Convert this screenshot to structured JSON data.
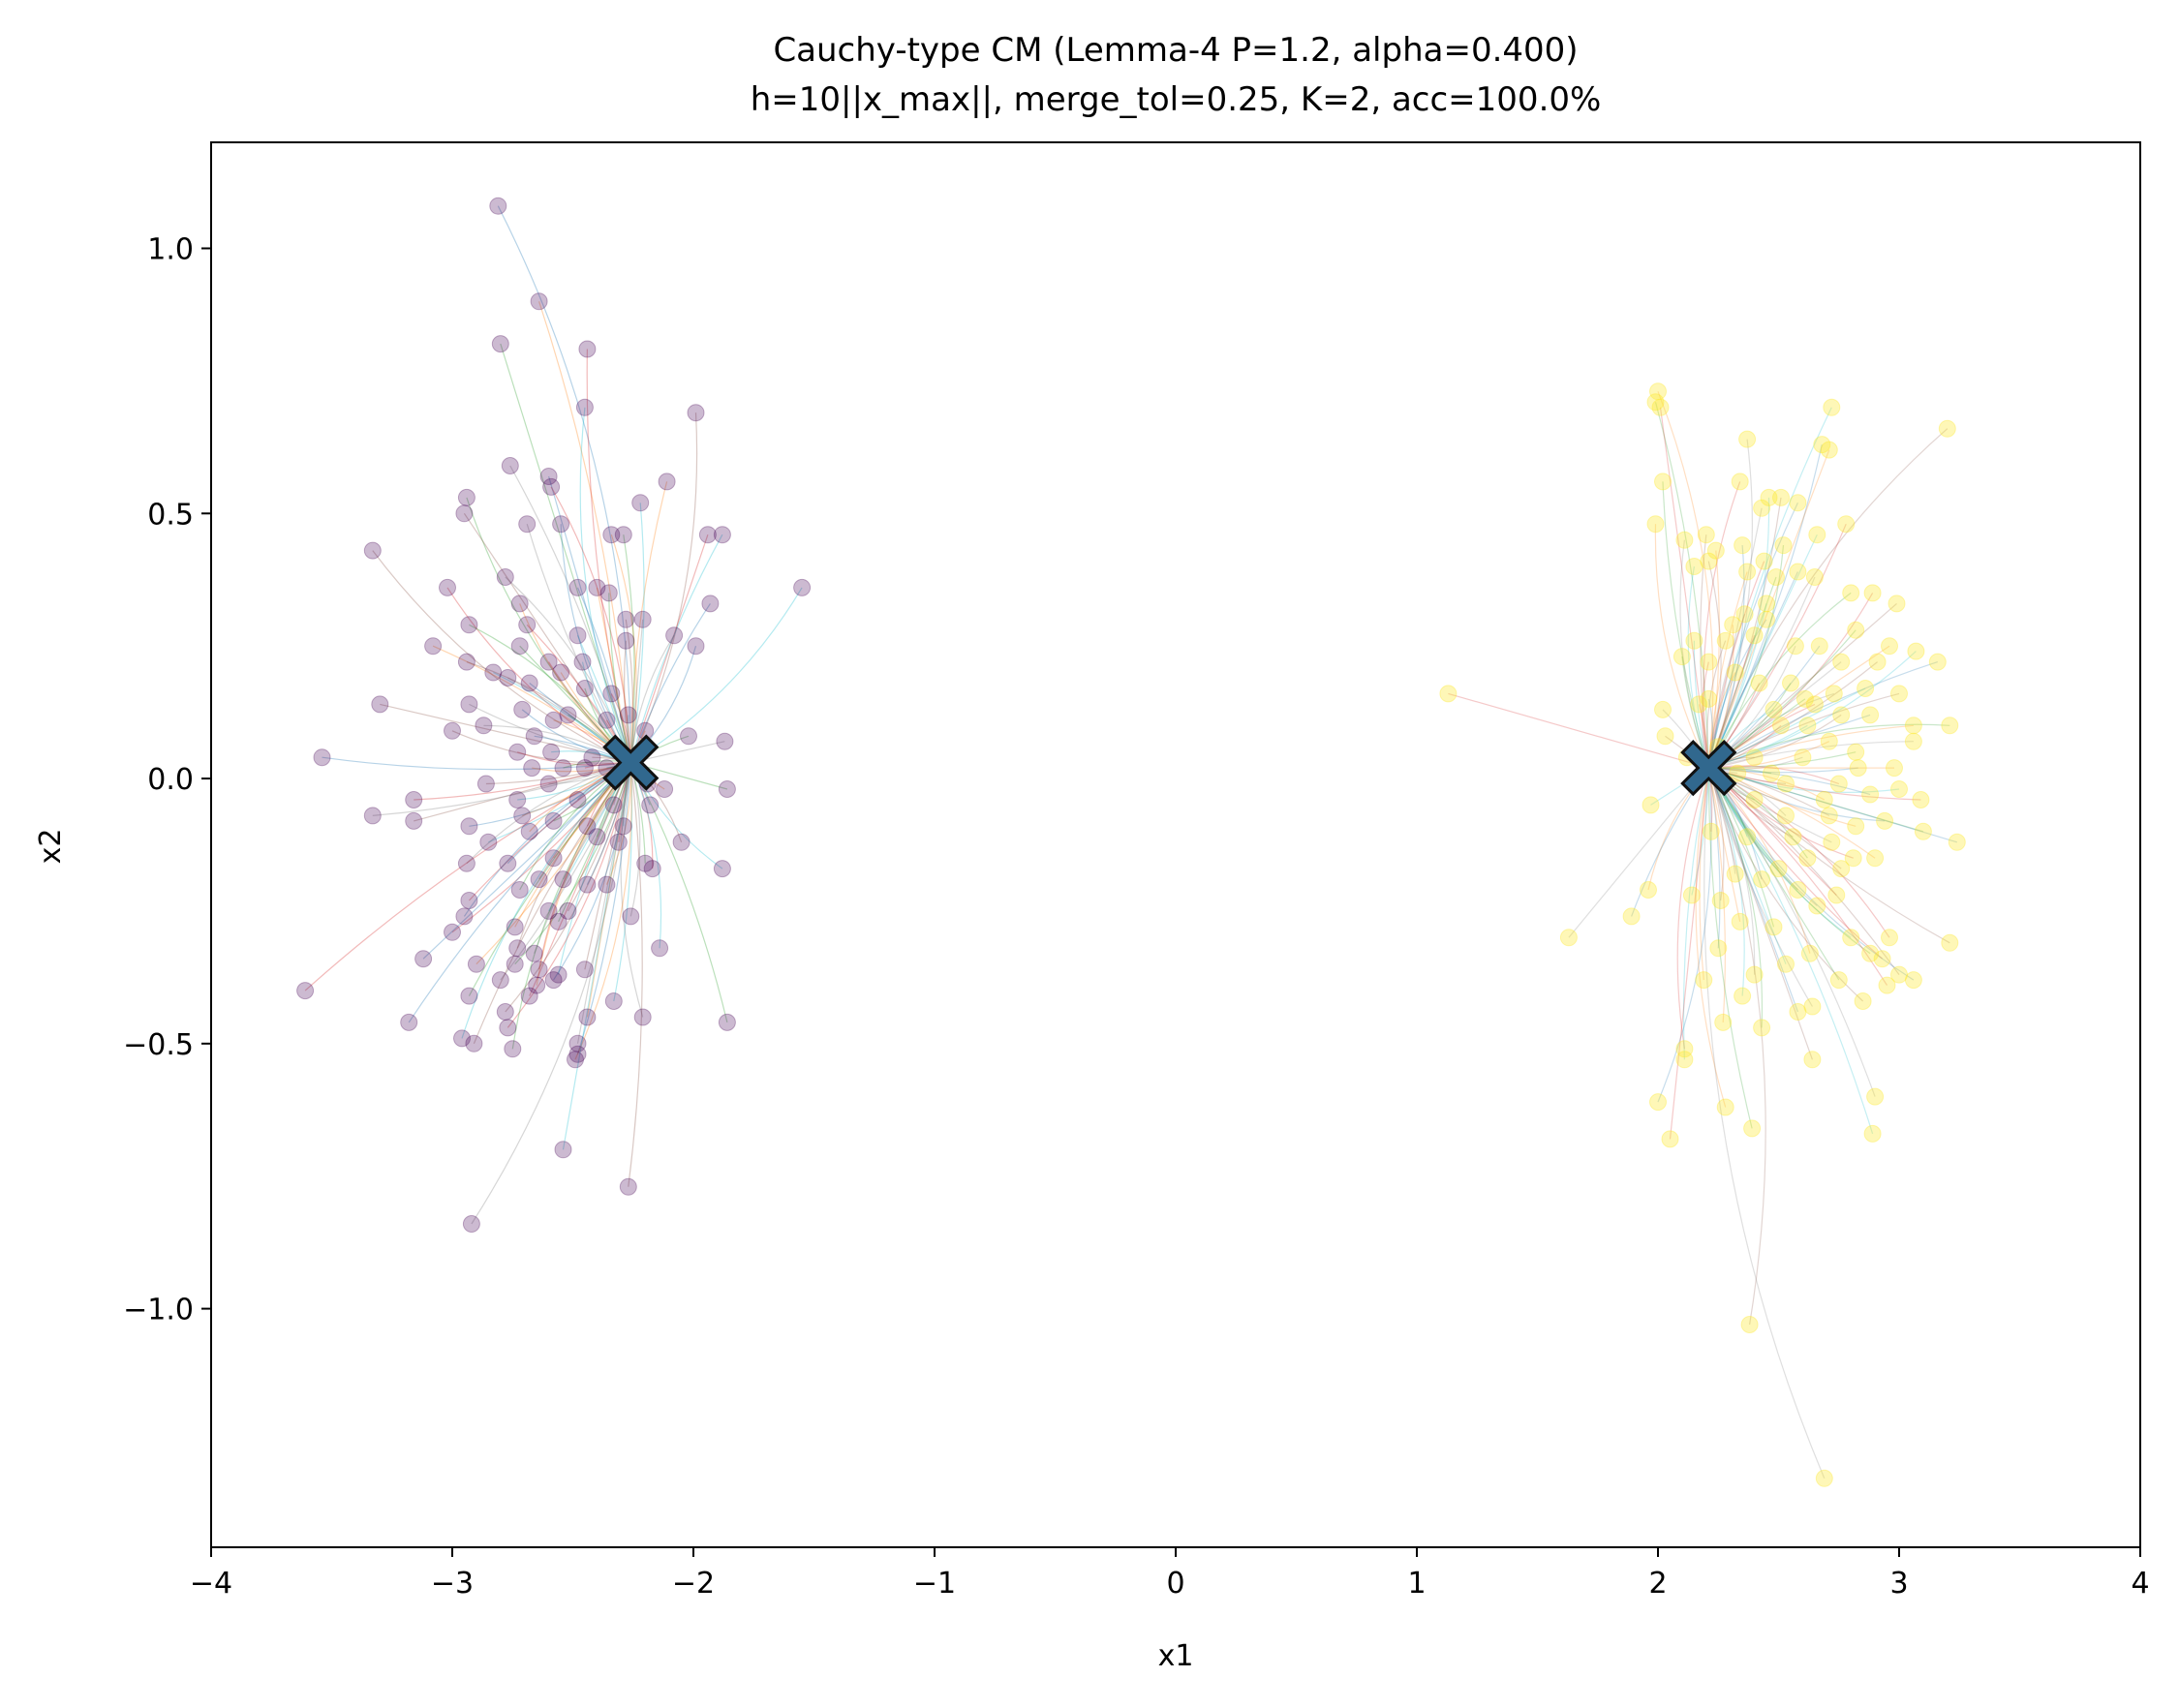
{
  "chart_data": {
    "type": "scatter",
    "title": "Cauchy-type CM (Lemma-4 P=1.2, alpha=0.400)",
    "subtitle": "h=10||x_max||, merge_tol=0.25, K=2, acc=100.0%",
    "xlabel": "x1",
    "ylabel": "x2",
    "xlim": [
      -4,
      4
    ],
    "ylim": [
      -1.45,
      1.2
    ],
    "xticks": [
      {
        "value": -4,
        "label": "−4"
      },
      {
        "value": -3,
        "label": "−3"
      },
      {
        "value": -2,
        "label": "−2"
      },
      {
        "value": -1,
        "label": "−1"
      },
      {
        "value": 0,
        "label": "0"
      },
      {
        "value": 1,
        "label": "1"
      },
      {
        "value": 2,
        "label": "2"
      },
      {
        "value": 3,
        "label": "3"
      },
      {
        "value": 4,
        "label": "4"
      }
    ],
    "yticks": [
      {
        "value": 1.0,
        "label": "1.0"
      },
      {
        "value": 0.5,
        "label": "0.5"
      },
      {
        "value": 0.0,
        "label": "0.0"
      },
      {
        "value": -0.5,
        "label": "−0.5"
      },
      {
        "value": -1.0,
        "label": "−1.0"
      }
    ],
    "grid": false,
    "legend": "none",
    "colors": {
      "cluster_left": "#440154",
      "cluster_right": "#fde725",
      "center_fill": "#31688e",
      "center_edge": "#111111",
      "trajectory_palette": [
        "#1f77b4",
        "#ff7f0e",
        "#2ca02c",
        "#d62728",
        "#17becf",
        "#8c564b",
        "#7f7f7f"
      ]
    },
    "series": [
      {
        "color": "#440154",
        "points": [
          [
            -2.81,
            1.08
          ],
          [
            -2.64,
            0.9
          ],
          [
            -2.8,
            0.82
          ],
          [
            -2.44,
            0.81
          ],
          [
            -2.45,
            0.7
          ],
          [
            -1.99,
            0.69
          ],
          [
            -2.76,
            0.59
          ],
          [
            -2.6,
            0.57
          ],
          [
            -2.11,
            0.56
          ],
          [
            -2.94,
            0.53
          ],
          [
            -2.59,
            0.55
          ],
          [
            -2.22,
            0.52
          ],
          [
            -2.95,
            0.5
          ],
          [
            -2.69,
            0.48
          ],
          [
            -2.55,
            0.48
          ],
          [
            -2.34,
            0.46
          ],
          [
            -2.29,
            0.46
          ],
          [
            -1.94,
            0.46
          ],
          [
            -1.88,
            0.46
          ],
          [
            -3.33,
            0.43
          ],
          [
            -2.78,
            0.38
          ],
          [
            -2.48,
            0.36
          ],
          [
            -2.4,
            0.36
          ],
          [
            -2.35,
            0.35
          ],
          [
            -3.02,
            0.36
          ],
          [
            -1.55,
            0.36
          ],
          [
            -2.28,
            0.3
          ],
          [
            -2.21,
            0.3
          ],
          [
            -1.93,
            0.33
          ],
          [
            -2.72,
            0.33
          ],
          [
            -2.93,
            0.29
          ],
          [
            -2.69,
            0.29
          ],
          [
            -2.48,
            0.27
          ],
          [
            -2.28,
            0.26
          ],
          [
            -2.08,
            0.27
          ],
          [
            -1.99,
            0.25
          ],
          [
            -3.08,
            0.25
          ],
          [
            -2.72,
            0.25
          ],
          [
            -2.6,
            0.22
          ],
          [
            -2.46,
            0.22
          ],
          [
            -2.94,
            0.22
          ],
          [
            -2.77,
            0.19
          ],
          [
            -2.68,
            0.18
          ],
          [
            -2.55,
            0.2
          ],
          [
            -2.45,
            0.17
          ],
          [
            -2.34,
            0.16
          ],
          [
            -2.83,
            0.2
          ],
          [
            -3.3,
            0.14
          ],
          [
            -2.93,
            0.14
          ],
          [
            -2.71,
            0.13
          ],
          [
            -2.58,
            0.11
          ],
          [
            -2.52,
            0.12
          ],
          [
            -2.36,
            0.11
          ],
          [
            -2.27,
            0.12
          ],
          [
            -3.0,
            0.09
          ],
          [
            -2.87,
            0.1
          ],
          [
            -2.66,
            0.08
          ],
          [
            -2.2,
            0.09
          ],
          [
            -2.02,
            0.08
          ],
          [
            -2.73,
            0.05
          ],
          [
            -2.59,
            0.05
          ],
          [
            -2.42,
            0.04
          ],
          [
            -1.87,
            0.07
          ],
          [
            -3.54,
            0.04
          ],
          [
            -2.67,
            0.02
          ],
          [
            -2.54,
            0.02
          ],
          [
            -2.45,
            0.02
          ],
          [
            -2.36,
            0.02
          ],
          [
            -2.86,
            -0.01
          ],
          [
            -2.6,
            -0.01
          ],
          [
            -2.19,
            -0.01
          ],
          [
            -2.12,
            -0.02
          ],
          [
            -1.86,
            -0.02
          ],
          [
            -3.16,
            -0.04
          ],
          [
            -2.73,
            -0.04
          ],
          [
            -2.48,
            -0.04
          ],
          [
            -2.33,
            -0.05
          ],
          [
            -2.18,
            -0.05
          ],
          [
            -2.71,
            -0.07
          ],
          [
            -2.58,
            -0.08
          ],
          [
            -2.44,
            -0.09
          ],
          [
            -2.29,
            -0.09
          ],
          [
            -3.16,
            -0.08
          ],
          [
            -3.33,
            -0.07
          ],
          [
            -2.93,
            -0.09
          ],
          [
            -2.68,
            -0.1
          ],
          [
            -2.4,
            -0.11
          ],
          [
            -2.31,
            -0.12
          ],
          [
            -2.85,
            -0.12
          ],
          [
            -2.05,
            -0.12
          ],
          [
            -2.94,
            -0.16
          ],
          [
            -2.77,
            -0.16
          ],
          [
            -2.58,
            -0.15
          ],
          [
            -2.2,
            -0.16
          ],
          [
            -2.17,
            -0.17
          ],
          [
            -1.88,
            -0.17
          ],
          [
            -2.64,
            -0.19
          ],
          [
            -2.54,
            -0.19
          ],
          [
            -2.44,
            -0.2
          ],
          [
            -2.36,
            -0.2
          ],
          [
            -2.72,
            -0.21
          ],
          [
            -2.93,
            -0.23
          ],
          [
            -2.6,
            -0.25
          ],
          [
            -2.52,
            -0.25
          ],
          [
            -2.26,
            -0.26
          ],
          [
            -2.95,
            -0.26
          ],
          [
            -2.74,
            -0.28
          ],
          [
            -2.56,
            -0.27
          ],
          [
            -3.0,
            -0.29
          ],
          [
            -2.14,
            -0.32
          ],
          [
            -2.73,
            -0.32
          ],
          [
            -2.66,
            -0.33
          ],
          [
            -3.12,
            -0.34
          ],
          [
            -2.9,
            -0.35
          ],
          [
            -2.74,
            -0.35
          ],
          [
            -2.64,
            -0.36
          ],
          [
            -2.56,
            -0.37
          ],
          [
            -2.45,
            -0.36
          ],
          [
            -2.8,
            -0.38
          ],
          [
            -2.58,
            -0.38
          ],
          [
            -2.65,
            -0.39
          ],
          [
            -2.93,
            -0.41
          ],
          [
            -2.68,
            -0.41
          ],
          [
            -2.33,
            -0.42
          ],
          [
            -2.78,
            -0.44
          ],
          [
            -2.21,
            -0.45
          ],
          [
            -3.18,
            -0.46
          ],
          [
            -2.44,
            -0.45
          ],
          [
            -1.86,
            -0.46
          ],
          [
            -2.77,
            -0.47
          ],
          [
            -2.96,
            -0.49
          ],
          [
            -2.91,
            -0.5
          ],
          [
            -2.48,
            -0.5
          ],
          [
            -2.48,
            -0.52
          ],
          [
            -2.49,
            -0.53
          ],
          [
            -2.75,
            -0.51
          ],
          [
            -3.61,
            -0.4
          ],
          [
            -2.54,
            -0.7
          ],
          [
            -2.27,
            -0.77
          ],
          [
            -2.92,
            -0.84
          ]
        ],
        "center": [
          -2.26,
          0.03
        ]
      },
      {
        "color": "#fde725",
        "points": [
          [
            2.0,
            0.73
          ],
          [
            1.99,
            0.71
          ],
          [
            2.01,
            0.7
          ],
          [
            2.72,
            0.7
          ],
          [
            3.2,
            0.66
          ],
          [
            2.37,
            0.64
          ],
          [
            2.68,
            0.63
          ],
          [
            2.71,
            0.62
          ],
          [
            2.02,
            0.56
          ],
          [
            2.34,
            0.56
          ],
          [
            2.46,
            0.53
          ],
          [
            2.51,
            0.53
          ],
          [
            2.43,
            0.51
          ],
          [
            2.58,
            0.52
          ],
          [
            1.99,
            0.48
          ],
          [
            2.52,
            0.44
          ],
          [
            2.78,
            0.48
          ],
          [
            2.66,
            0.46
          ],
          [
            2.2,
            0.46
          ],
          [
            2.11,
            0.45
          ],
          [
            2.35,
            0.44
          ],
          [
            2.24,
            0.43
          ],
          [
            2.49,
            0.38
          ],
          [
            2.44,
            0.41
          ],
          [
            2.15,
            0.4
          ],
          [
            2.21,
            0.41
          ],
          [
            2.65,
            0.38
          ],
          [
            2.58,
            0.39
          ],
          [
            2.37,
            0.39
          ],
          [
            2.8,
            0.35
          ],
          [
            2.89,
            0.35
          ],
          [
            2.45,
            0.33
          ],
          [
            2.99,
            0.33
          ],
          [
            2.36,
            0.31
          ],
          [
            2.45,
            0.3
          ],
          [
            2.31,
            0.29
          ],
          [
            2.82,
            0.28
          ],
          [
            2.4,
            0.27
          ],
          [
            2.15,
            0.26
          ],
          [
            2.28,
            0.26
          ],
          [
            2.57,
            0.25
          ],
          [
            2.67,
            0.25
          ],
          [
            2.96,
            0.25
          ],
          [
            2.1,
            0.23
          ],
          [
            2.21,
            0.22
          ],
          [
            3.07,
            0.24
          ],
          [
            2.91,
            0.22
          ],
          [
            2.76,
            0.22
          ],
          [
            3.16,
            0.22
          ],
          [
            2.32,
            0.2
          ],
          [
            2.55,
            0.18
          ],
          [
            2.42,
            0.18
          ],
          [
            2.86,
            0.17
          ],
          [
            3.0,
            0.16
          ],
          [
            2.73,
            0.16
          ],
          [
            2.21,
            0.15
          ],
          [
            2.17,
            0.14
          ],
          [
            2.61,
            0.15
          ],
          [
            2.65,
            0.14
          ],
          [
            2.48,
            0.13
          ],
          [
            2.76,
            0.12
          ],
          [
            2.02,
            0.13
          ],
          [
            2.88,
            0.12
          ],
          [
            3.06,
            0.1
          ],
          [
            3.21,
            0.1
          ],
          [
            2.51,
            0.1
          ],
          [
            2.62,
            0.1
          ],
          [
            2.03,
            0.08
          ],
          [
            3.06,
            0.07
          ],
          [
            2.25,
            0.06
          ],
          [
            2.71,
            0.07
          ],
          [
            2.82,
            0.05
          ],
          [
            1.13,
            0.16
          ],
          [
            2.12,
            0.04
          ],
          [
            2.4,
            0.04
          ],
          [
            2.6,
            0.04
          ],
          [
            2.83,
            0.02
          ],
          [
            2.98,
            0.02
          ],
          [
            2.47,
            0.01
          ],
          [
            2.75,
            -0.01
          ],
          [
            3.0,
            -0.02
          ],
          [
            2.53,
            -0.01
          ],
          [
            2.33,
            0.01
          ],
          [
            2.88,
            -0.03
          ],
          [
            2.69,
            -0.04
          ],
          [
            2.4,
            -0.04
          ],
          [
            3.09,
            -0.04
          ],
          [
            1.97,
            -0.05
          ],
          [
            2.71,
            -0.07
          ],
          [
            2.53,
            -0.07
          ],
          [
            2.94,
            -0.08
          ],
          [
            2.82,
            -0.09
          ],
          [
            3.1,
            -0.1
          ],
          [
            2.22,
            -0.1
          ],
          [
            2.37,
            -0.11
          ],
          [
            2.56,
            -0.11
          ],
          [
            2.72,
            -0.12
          ],
          [
            3.24,
            -0.12
          ],
          [
            2.9,
            -0.15
          ],
          [
            2.62,
            -0.15
          ],
          [
            2.81,
            -0.15
          ],
          [
            2.5,
            -0.17
          ],
          [
            2.76,
            -0.17
          ],
          [
            2.32,
            -0.18
          ],
          [
            2.43,
            -0.19
          ],
          [
            1.96,
            -0.21
          ],
          [
            2.58,
            -0.21
          ],
          [
            2.74,
            -0.22
          ],
          [
            2.14,
            -0.22
          ],
          [
            2.26,
            -0.23
          ],
          [
            2.66,
            -0.24
          ],
          [
            1.89,
            -0.26
          ],
          [
            2.34,
            -0.27
          ],
          [
            2.48,
            -0.28
          ],
          [
            2.96,
            -0.3
          ],
          [
            2.8,
            -0.3
          ],
          [
            3.21,
            -0.31
          ],
          [
            1.63,
            -0.3
          ],
          [
            2.25,
            -0.32
          ],
          [
            2.63,
            -0.33
          ],
          [
            2.88,
            -0.33
          ],
          [
            2.93,
            -0.34
          ],
          [
            2.53,
            -0.35
          ],
          [
            3.0,
            -0.37
          ],
          [
            2.4,
            -0.37
          ],
          [
            3.06,
            -0.38
          ],
          [
            2.19,
            -0.38
          ],
          [
            2.75,
            -0.38
          ],
          [
            2.95,
            -0.39
          ],
          [
            2.35,
            -0.41
          ],
          [
            2.85,
            -0.42
          ],
          [
            2.64,
            -0.43
          ],
          [
            2.58,
            -0.44
          ],
          [
            2.27,
            -0.46
          ],
          [
            2.43,
            -0.47
          ],
          [
            2.11,
            -0.51
          ],
          [
            2.11,
            -0.53
          ],
          [
            2.64,
            -0.53
          ],
          [
            2.9,
            -0.6
          ],
          [
            2.0,
            -0.61
          ],
          [
            2.28,
            -0.62
          ],
          [
            2.39,
            -0.66
          ],
          [
            2.05,
            -0.68
          ],
          [
            2.89,
            -0.67
          ],
          [
            2.38,
            -1.03
          ],
          [
            2.69,
            -1.32
          ]
        ],
        "center": [
          2.21,
          0.02
        ]
      }
    ],
    "centers_marker": "X"
  }
}
